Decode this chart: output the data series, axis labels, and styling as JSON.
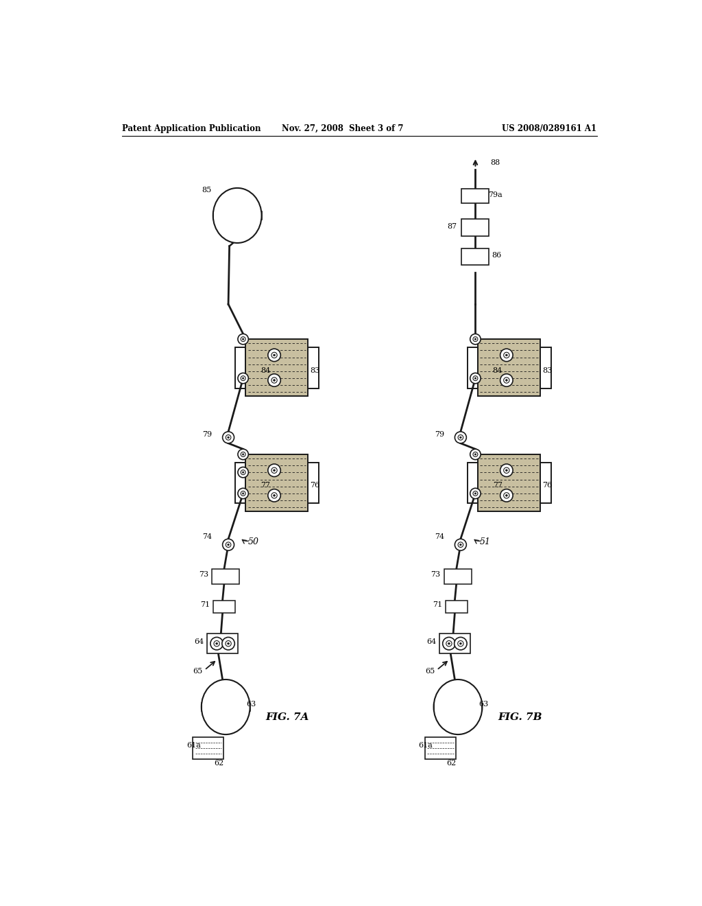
{
  "header_left": "Patent Application Publication",
  "header_mid": "Nov. 27, 2008  Sheet 3 of 7",
  "header_right": "US 2008/0289161 A1",
  "fig7a_label": "FIG. 7A",
  "fig7b_label": "FIG. 7B",
  "bg_color": "#ffffff",
  "line_color": "#1a1a1a",
  "fill_calender": "#c8bfa0",
  "fill_white": "#ffffff"
}
